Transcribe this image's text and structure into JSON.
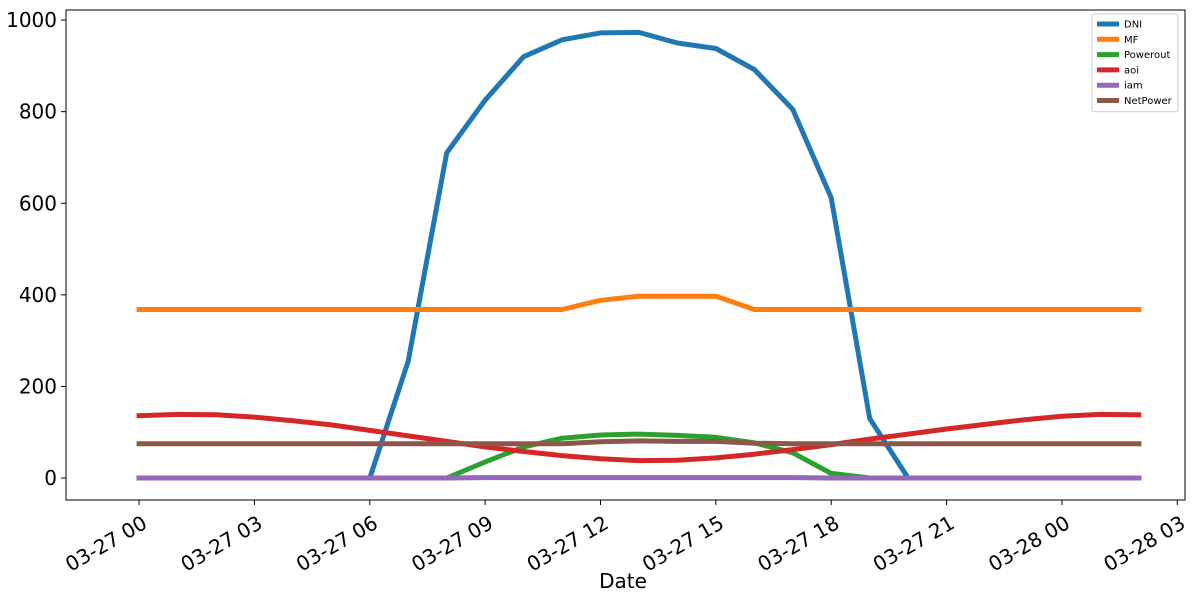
{
  "chart_data": {
    "type": "line",
    "title": "",
    "xlabel": "Date",
    "ylabel": "",
    "x_axis_type": "datetime",
    "x": [
      "2021-03-27T00:00",
      "2021-03-27T01:00",
      "2021-03-27T02:00",
      "2021-03-27T03:00",
      "2021-03-27T04:00",
      "2021-03-27T05:00",
      "2021-03-27T06:00",
      "2021-03-27T07:00",
      "2021-03-27T08:00",
      "2021-03-27T09:00",
      "2021-03-27T10:00",
      "2021-03-27T11:00",
      "2021-03-27T12:00",
      "2021-03-27T13:00",
      "2021-03-27T14:00",
      "2021-03-27T15:00",
      "2021-03-27T16:00",
      "2021-03-27T17:00",
      "2021-03-27T18:00",
      "2021-03-27T19:00",
      "2021-03-27T20:00",
      "2021-03-27T21:00",
      "2021-03-27T22:00",
      "2021-03-27T23:00",
      "2021-03-28T00:00",
      "2021-03-28T01:00",
      "2021-03-28T02:00"
    ],
    "xlim": [
      "2021-03-26T22:06",
      "2021-03-28T03:12"
    ],
    "ylim": [
      -48,
      1022
    ],
    "xticks": [
      {
        "value": "2021-03-27T00:00",
        "label": "03-27 00"
      },
      {
        "value": "2021-03-27T03:00",
        "label": "03-27 03"
      },
      {
        "value": "2021-03-27T06:00",
        "label": "03-27 06"
      },
      {
        "value": "2021-03-27T09:00",
        "label": "03-27 09"
      },
      {
        "value": "2021-03-27T12:00",
        "label": "03-27 12"
      },
      {
        "value": "2021-03-27T15:00",
        "label": "03-27 15"
      },
      {
        "value": "2021-03-27T18:00",
        "label": "03-27 18"
      },
      {
        "value": "2021-03-27T21:00",
        "label": "03-27 21"
      },
      {
        "value": "2021-03-28T00:00",
        "label": "03-28 00"
      },
      {
        "value": "2021-03-28T03:00",
        "label": "03-28 03"
      }
    ],
    "yticks": [
      {
        "value": 0,
        "label": "0"
      },
      {
        "value": 200,
        "label": "200"
      },
      {
        "value": 400,
        "label": "400"
      },
      {
        "value": 600,
        "label": "600"
      },
      {
        "value": 800,
        "label": "800"
      },
      {
        "value": 1000,
        "label": "1000"
      }
    ],
    "grid": false,
    "legend_position": "top-right",
    "series": [
      {
        "name": "DNI",
        "color": "#1f77b4",
        "values": [
          0,
          0,
          0,
          0,
          0,
          0,
          0,
          255,
          710,
          825,
          920,
          957,
          972,
          973,
          950,
          938,
          892,
          805,
          612,
          130,
          0,
          0,
          0,
          0,
          0,
          0,
          0
        ]
      },
      {
        "name": "MF",
        "color": "#ff7f0e",
        "values": [
          368,
          368,
          368,
          368,
          368,
          368,
          368,
          368,
          368,
          368,
          368,
          368,
          388,
          397,
          397,
          397,
          368,
          368,
          368,
          368,
          368,
          368,
          368,
          368,
          368,
          368,
          368
        ]
      },
      {
        "name": "Powerout",
        "color": "#2ca02c",
        "values": [
          0,
          0,
          0,
          0,
          0,
          0,
          0,
          0,
          0,
          35,
          68,
          87,
          94,
          96,
          93,
          89,
          77,
          55,
          10,
          0,
          0,
          0,
          0,
          0,
          0,
          0,
          0
        ]
      },
      {
        "name": "aoi",
        "color": "#d62728",
        "values": [
          136,
          139,
          138,
          133,
          125,
          116,
          104,
          92,
          80,
          68,
          58,
          49,
          42,
          38,
          39,
          44,
          52,
          62,
          73,
          85,
          96,
          107,
          117,
          127,
          135,
          139,
          138
        ]
      },
      {
        "name": "iam",
        "color": "#9467bd",
        "values": [
          0,
          0,
          0,
          0,
          0,
          0,
          0,
          0,
          0,
          1,
          1,
          1,
          1,
          1,
          1,
          1,
          1,
          1,
          0,
          0,
          0,
          0,
          0,
          0,
          0,
          0,
          0
        ]
      },
      {
        "name": "NetPower",
        "color": "#8c564b",
        "values": [
          75,
          75,
          75,
          75,
          75,
          75,
          75,
          75,
          75,
          75,
          75,
          75,
          79,
          81,
          80,
          80,
          76,
          75,
          75,
          75,
          75,
          75,
          75,
          75,
          75,
          75,
          75
        ]
      }
    ]
  }
}
